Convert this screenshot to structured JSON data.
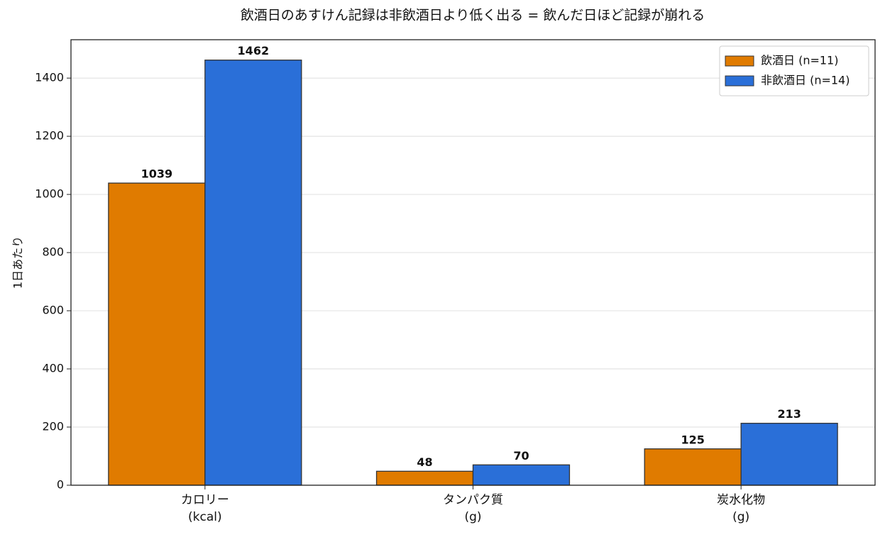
{
  "chart_data": {
    "type": "bar",
    "title": "飲酒日のあすけん記録は非飲酒日より低く出る = 飲んだ日ほど記録が崩れる",
    "ylabel": "1日あたり",
    "categories": [
      "カロリー\n(kcal)",
      "タンパク質\n(g)",
      "炭水化物\n(g)"
    ],
    "series": [
      {
        "name": "飲酒日 (n=11)",
        "color": "#e07b00",
        "values": [
          1039,
          48,
          125
        ]
      },
      {
        "name": "非飲酒日 (n=14)",
        "color": "#2a6fd8",
        "values": [
          1462,
          70,
          213
        ]
      }
    ],
    "ylim": [
      0,
      1532
    ],
    "yticks": [
      0,
      200,
      400,
      600,
      800,
      1000,
      1200,
      1400
    ],
    "grid": true,
    "legend": "upper-right"
  }
}
